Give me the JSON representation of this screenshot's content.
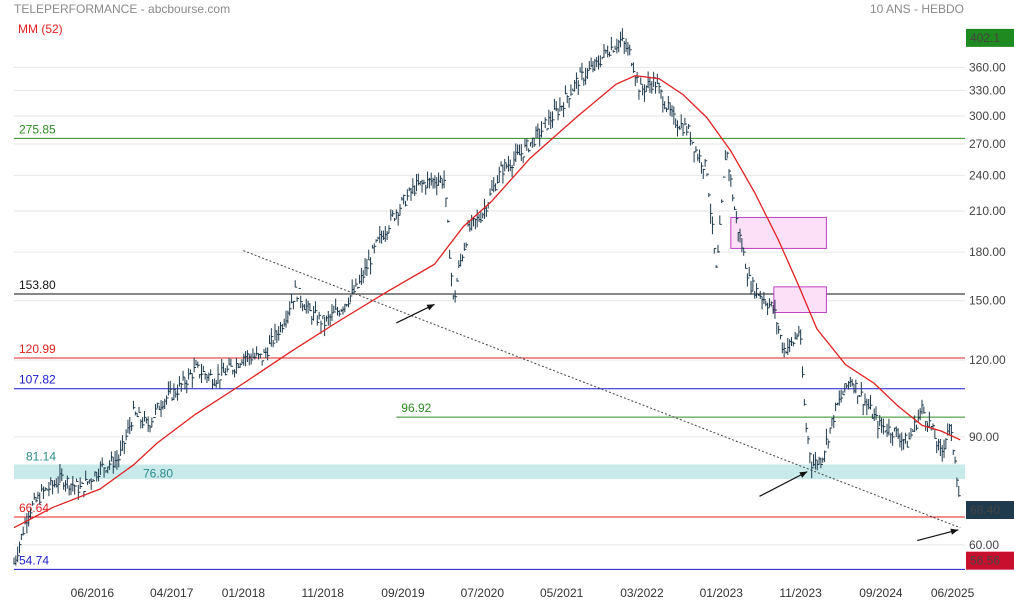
{
  "header": {
    "left": "TELEPERFORMANCE - abcbourse.com",
    "right": "10 ANS - HEBDO",
    "ma_label": "MM (52)"
  },
  "colors": {
    "candle": "#1f3a4d",
    "ma": "#e02020",
    "green": "#2e8b22",
    "red": "#e02020",
    "blue": "#1a1acc",
    "black": "#111111",
    "teal": "#2a8a8a",
    "zone_fill": "#bfe6e6",
    "pink_fill": "#fbe0f7",
    "pink_stroke": "#c040c0",
    "grid": "#e6e6e6"
  },
  "chart_data": {
    "type": "line",
    "title": "TELEPERFORMANCE",
    "subtitle": "10 ANS - HEBDO",
    "scale": "log",
    "y_ticks": [
      60,
      90,
      120,
      150,
      180,
      210,
      240,
      270,
      300,
      330,
      360
    ],
    "y_tick_labels": [
      "60.00",
      "90.00",
      "120.00",
      "150.00",
      "180.00",
      "210.00",
      "240.00",
      "270.00",
      "300.00",
      "330.00",
      "360.00"
    ],
    "ylim": [
      53,
      430
    ],
    "xlim": [
      2015.6,
      2025.55
    ],
    "x_ticks": [
      2016.42,
      2017.25,
      2018.0,
      2018.83,
      2019.67,
      2020.5,
      2021.33,
      2022.17,
      2023.0,
      2023.83,
      2024.67,
      2025.42
    ],
    "x_tick_labels": [
      "06/2016",
      "04/2017",
      "01/2018",
      "11/2018",
      "09/2019",
      "07/2020",
      "05/2021",
      "03/2022",
      "01/2023",
      "11/2023",
      "09/2024",
      "06/2025"
    ],
    "price_series": {
      "name": "TELEPERFORMANCE",
      "x": [
        2015.6,
        2015.75,
        2015.9,
        2016.1,
        2016.3,
        2016.5,
        2016.7,
        2016.85,
        2017.0,
        2017.15,
        2017.3,
        2017.5,
        2017.7,
        2017.9,
        2018.0,
        2018.2,
        2018.4,
        2018.55,
        2018.7,
        2018.85,
        2019.0,
        2019.2,
        2019.4,
        2019.6,
        2019.8,
        2020.0,
        2020.1,
        2020.2,
        2020.25,
        2020.35,
        2020.5,
        2020.7,
        2020.9,
        2021.1,
        2021.3,
        2021.5,
        2021.7,
        2021.8,
        2021.95,
        2022.05,
        2022.15,
        2022.3,
        2022.5,
        2022.65,
        2022.75,
        2022.85,
        2022.95,
        2023.05,
        2023.15,
        2023.3,
        2023.45,
        2023.55,
        2023.65,
        2023.75,
        2023.82,
        2023.88,
        2023.95,
        2024.05,
        2024.2,
        2024.35,
        2024.5,
        2024.65,
        2024.8,
        2024.95,
        2025.1,
        2025.2,
        2025.3,
        2025.38,
        2025.45,
        2025.5
      ],
      "values": [
        56,
        68,
        73,
        77,
        74,
        80,
        83,
        98,
        94,
        103,
        107,
        116,
        112,
        117,
        122,
        121,
        137,
        156,
        143,
        138,
        145,
        158,
        186,
        210,
        230,
        236,
        236,
        148,
        168,
        195,
        208,
        245,
        260,
        282,
        308,
        343,
        364,
        383,
        398,
        378,
        330,
        342,
        296,
        285,
        260,
        245,
        165,
        268,
        205,
        160,
        151,
        145,
        125,
        128,
        135,
        95,
        81,
        83,
        100,
        112,
        103,
        94,
        92,
        88,
        100,
        93,
        84,
        94,
        83,
        68.4
      ]
    },
    "ma_series": {
      "name": "MM (52)",
      "x": [
        2015.6,
        2016.0,
        2016.5,
        2016.85,
        2017.1,
        2017.5,
        2018.0,
        2018.5,
        2019.0,
        2019.5,
        2020.0,
        2020.3,
        2020.6,
        2021.0,
        2021.5,
        2021.9,
        2022.1,
        2022.35,
        2022.6,
        2022.85,
        2023.1,
        2023.35,
        2023.6,
        2023.8,
        2024.0,
        2024.3,
        2024.6,
        2024.85,
        2025.1,
        2025.3,
        2025.5
      ],
      "values": [
        64,
        69,
        74,
        81,
        88,
        98,
        110,
        124,
        139,
        155,
        172,
        198,
        218,
        256,
        300,
        338,
        349,
        345,
        325,
        298,
        263,
        225,
        188,
        160,
        135,
        118,
        110,
        101,
        94,
        92,
        89
      ]
    },
    "trendline": {
      "x": [
        2018.0,
        2025.5
      ],
      "values": [
        181,
        64
      ]
    },
    "horizontal_levels": [
      {
        "label": "275.85",
        "value": 275.85,
        "color": "#2e8b22",
        "from": 2015.6
      },
      {
        "label": "153.80",
        "value": 153.8,
        "color": "#111111",
        "from": 2015.6
      },
      {
        "label": "120.99",
        "value": 120.99,
        "color": "#e02020",
        "from": 2015.6
      },
      {
        "label": "107.82",
        "value": 107.82,
        "color": "#1a1acc",
        "from": 2015.6
      },
      {
        "label": "96.92",
        "value": 96.92,
        "color": "#2e8b22",
        "from": 2019.6
      },
      {
        "label": "66.64",
        "value": 66.64,
        "color": "#e02020",
        "from": 2015.6
      },
      {
        "label": "54.74",
        "value": 54.74,
        "color": "#1a1acc",
        "from": 2015.6
      }
    ],
    "support_zone": {
      "label_top": "81.14",
      "label_inner": "76.80",
      "high": 81.14,
      "low": 76.8
    },
    "boxes": [
      {
        "x0": 2023.1,
        "x1": 2024.1,
        "y0": 182.5,
        "y1": 205
      },
      {
        "x0": 2023.55,
        "x1": 2024.1,
        "y0": 143.5,
        "y1": 158
      }
    ],
    "arrows": [
      {
        "from_x": 2019.6,
        "from_y": 138,
        "to_x": 2020.0,
        "to_y": 148
      },
      {
        "from_x": 2023.4,
        "from_y": 72,
        "to_x": 2023.9,
        "to_y": 79
      },
      {
        "from_x": 2025.05,
        "from_y": 61,
        "to_x": 2025.48,
        "to_y": 63.5
      }
    ],
    "badges": [
      {
        "label": "402.1",
        "value": 402.1,
        "color": "#1f8a1f"
      },
      {
        "label": "68.40",
        "value": 68.4,
        "color": "#1f3a4d"
      },
      {
        "label": "56.56",
        "value": 56.56,
        "color": "#c8102e"
      }
    ]
  }
}
